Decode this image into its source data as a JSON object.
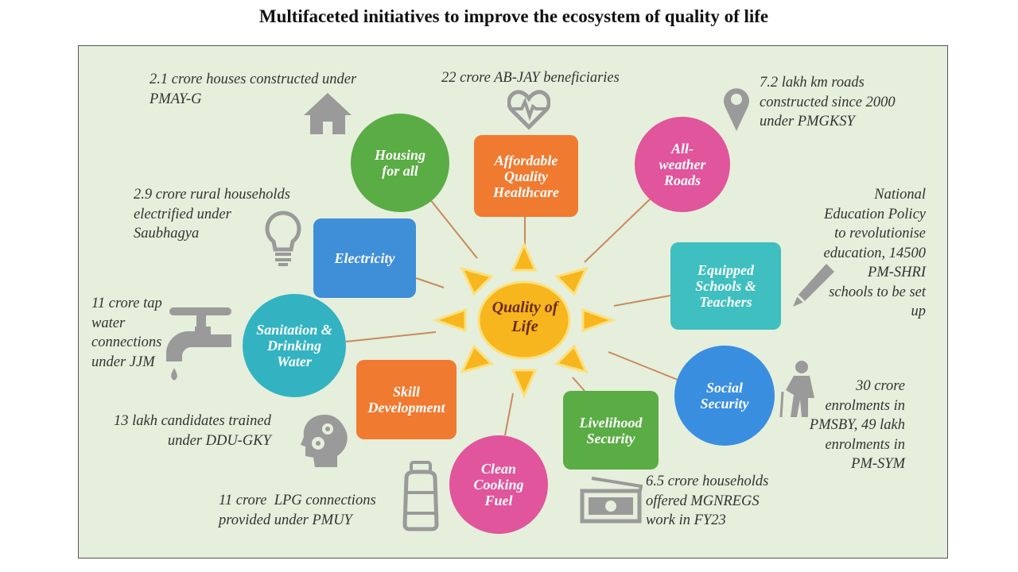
{
  "title": "Multifaceted initiatives to improve the ecosystem of quality of life",
  "center": "Quality of Life",
  "colors": {
    "background": "#e5efdb",
    "sun": "#f7b51e",
    "green": "#5aac44",
    "orange": "#f07a30",
    "pink": "#e0559b",
    "blue": "#3f8fd8",
    "teal": "#33b3c2",
    "icon": "#9a9a9a",
    "connector": "#c98a5c"
  },
  "nodes": {
    "housing": "Housing for all",
    "healthcare": "Affordable Quality Healthcare",
    "roads": "All-weather Roads",
    "electricity": "Electricity",
    "schools": "Equipped Schools & Teachers",
    "sanitation": "Sanitation & Drinking Water",
    "social_security": "Social Security",
    "skill": "Skill Development",
    "livelihood": "Livelihood Security",
    "cooking": "Clean Cooking Fuel"
  },
  "notes": {
    "housing": "2.1 crore houses constructed under\nPMAY-G",
    "healthcare": "22 crore AB-JAY beneficiaries",
    "roads": "7.2 lakh km roads\nconstructed since 2000\nunder PMGKSY",
    "electricity": "2.9 crore rural households\nelectrified under\nSaubhagya",
    "schools": "National\nEducation Policy\nto revolutionise\neducation, 14500\nPM-SHRI\nschools to be set\nup",
    "sanitation": "11 crore tap\nwater\nconnections\nunder JJM",
    "skill": "13 lakh candidates trained\nunder DDU-GKY",
    "social_security": "30 crore\nenrolments in\nPMSBY, 49 lakh\nenrolments in\nPM-SYM",
    "cooking": "11 crore  LPG connections\nprovided under PMUY",
    "livelihood": "6.5 crore households\noffered MGNREGS\nwork in FY23"
  },
  "icons": [
    "house-icon",
    "heart-pulse-icon",
    "location-pin-icon",
    "light-bulb-icon",
    "pencil-icon",
    "water-tap-icon",
    "elderly-person-icon",
    "head-gears-icon",
    "gas-cylinder-icon",
    "money-icon"
  ]
}
